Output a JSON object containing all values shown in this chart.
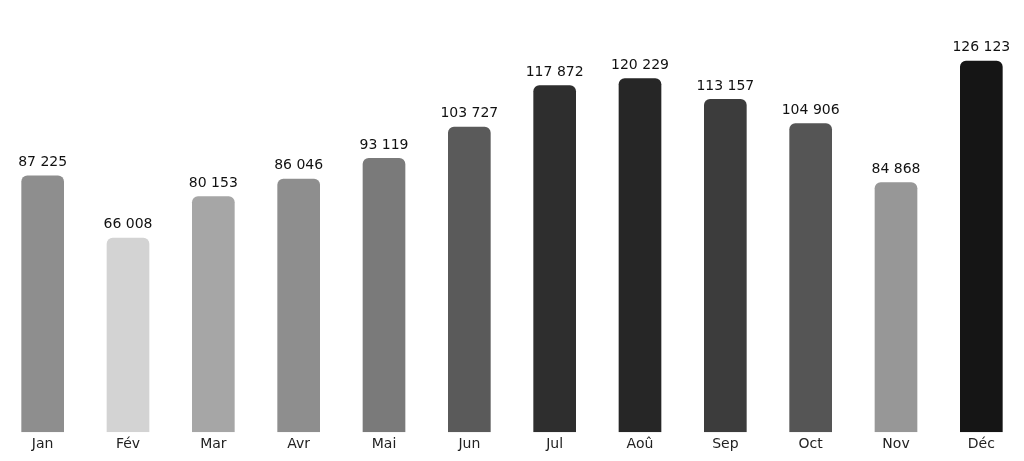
{
  "chart_data": {
    "type": "bar",
    "categories": [
      "Jan",
      "Fév",
      "Mar",
      "Avr",
      "Mai",
      "Jun",
      "Jul",
      "Aoû",
      "Sep",
      "Oct",
      "Nov",
      "Déc"
    ],
    "values": [
      87225,
      66008,
      80153,
      86046,
      93119,
      103727,
      117872,
      120229,
      113157,
      104906,
      84868,
      126123
    ],
    "value_labels": [
      "87 225",
      "66 008",
      "80 153",
      "86 046",
      "93 119",
      "103 727",
      "117 872",
      "120 229",
      "113 157",
      "104 906",
      "84 868",
      "126 123"
    ],
    "colors": [
      "#8e8e8e",
      "#d3d3d3",
      "#a6a6a6",
      "#8e8e8e",
      "#7a7a7a",
      "#5a5a5a",
      "#2e2e2e",
      "#262626",
      "#3c3c3c",
      "#555555",
      "#979797",
      "#151515"
    ],
    "tick_labels": "x",
    "grid": false,
    "legend": false
  }
}
